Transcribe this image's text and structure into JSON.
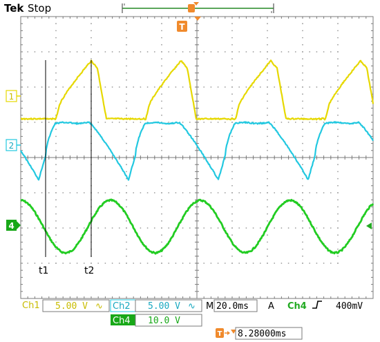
{
  "header": {
    "brand": "Tek",
    "run_state": "Stop",
    "trigger_marker_label": "T"
  },
  "channels": {
    "ch1": {
      "label": "1",
      "color": "#e6d800",
      "name": "Ch1",
      "scale": "5.00 V",
      "coupling": "∿"
    },
    "ch2": {
      "label": "2",
      "color": "#22c8e0",
      "name": "Ch2",
      "scale": "5.00 V",
      "coupling": "∿"
    },
    "ch4": {
      "label": "4",
      "color": "#22cc22",
      "name": "Ch4",
      "scale": "10.0 V"
    }
  },
  "annotations": {
    "t1": "t1",
    "t2": "t2"
  },
  "timebase": {
    "prefix": "M",
    "value": "20.0ms"
  },
  "trigger": {
    "mode": "A",
    "source": "Ch4",
    "slope_icon": "rising-edge-icon",
    "level": "400mV",
    "position_label": "T",
    "position": "8.28000ms"
  }
}
